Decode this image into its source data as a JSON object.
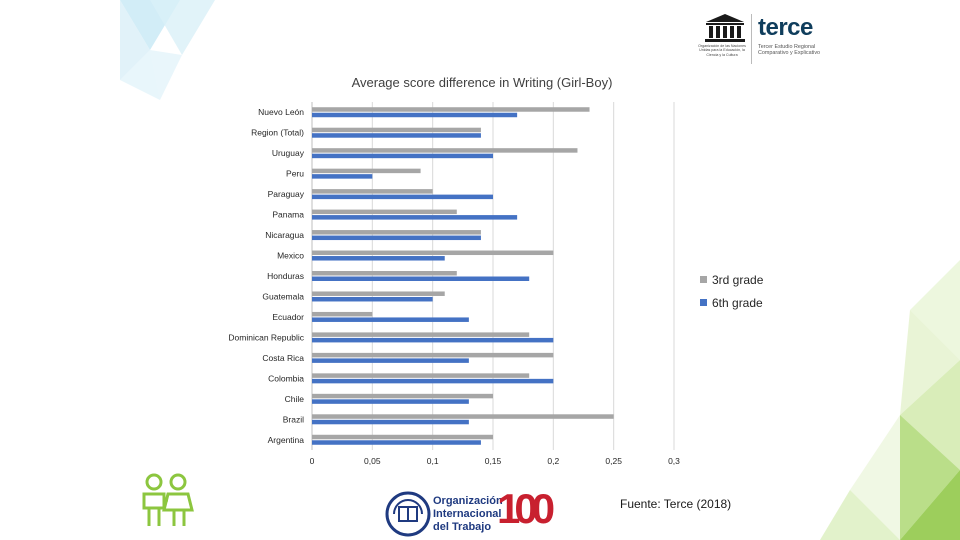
{
  "chart_data": {
    "type": "bar",
    "orientation": "horizontal",
    "title": "Average score difference in Writing (Girl-Boy)",
    "categories": [
      "Nuevo León",
      "Region (Total)",
      "Uruguay",
      "Peru",
      "Paraguay",
      "Panama",
      "Nicaragua",
      "Mexico",
      "Honduras",
      "Guatemala",
      "Ecuador",
      "Dominican Republic",
      "Costa Rica",
      "Colombia",
      "Chile",
      "Brazil",
      "Argentina"
    ],
    "series": [
      {
        "name": "3rd grade",
        "color": "#a6a6a6",
        "values": [
          0.23,
          0.14,
          0.22,
          0.09,
          0.1,
          0.12,
          0.14,
          0.2,
          0.12,
          0.11,
          0.05,
          0.18,
          0.2,
          0.18,
          0.15,
          0.25,
          0.15
        ]
      },
      {
        "name": "6th grade",
        "color": "#4472c4",
        "values": [
          0.17,
          0.14,
          0.15,
          0.05,
          0.15,
          0.17,
          0.14,
          0.11,
          0.18,
          0.1,
          0.13,
          0.2,
          0.13,
          0.2,
          0.13,
          0.13,
          0.14
        ]
      }
    ],
    "xlim": [
      0,
      0.3
    ],
    "xticks": [
      "0",
      "0,05",
      "0,1",
      "0,15",
      "0,2",
      "0,25",
      "0,3"
    ],
    "xtick_values": [
      0,
      0.05,
      0.1,
      0.15,
      0.2,
      0.25,
      0.3
    ],
    "grid": true,
    "legend_position": "right"
  },
  "legend": {
    "item_3rd": "3rd grade",
    "item_6th": "6th grade"
  },
  "source": "Fuente: Terce (2018)",
  "logos": {
    "unesco_text": "Organización de las Naciones Unidas para la Educación, la Ciencia y la Cultura",
    "terce_word": "terce",
    "terce_sub": "Tercer Estudio Regional Comparativo y Explicativo",
    "oit_text": "Organización Internacional del Trabajo",
    "hundred": "100"
  },
  "colors": {
    "decor_blue": "#7ec8e3",
    "decor_green": "#8cc63f",
    "oit_blue": "#1f3a80",
    "oit_red": "#c8202f"
  }
}
